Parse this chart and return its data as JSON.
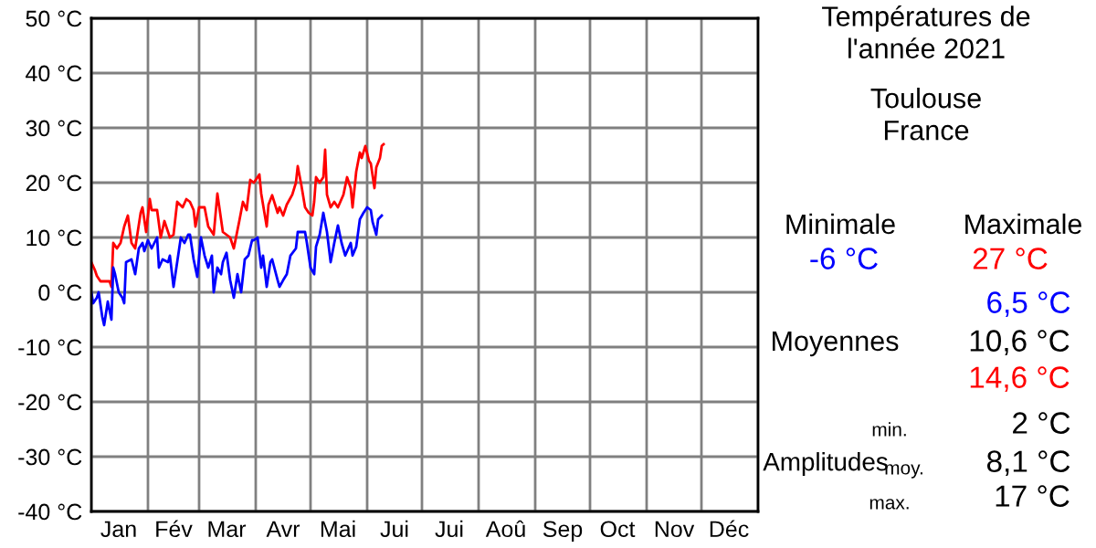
{
  "chart_data": {
    "type": "line",
    "title": "Températures de\nl'année 2021",
    "subtitle": "Toulouse\nFrance",
    "annotations": [
      "Minimale",
      "Maximale",
      "-6 °C",
      "27 °C",
      "6,5 °C",
      "Moyennes",
      "10,6 °C",
      "14,6 °C",
      "min.",
      "2 °C",
      "Amplitudes",
      "moy.",
      "8,1 °C",
      "max.",
      "17 °C"
    ],
    "xlim": [
      "2021-01-01",
      "2022-01-01"
    ],
    "xticks": [
      {
        "value": "2021-01-01",
        "label": null
      },
      {
        "value": "2021-01-16",
        "label": "Jan"
      },
      {
        "value": "2021-02-01",
        "label": null
      },
      {
        "value": "2021-02-15",
        "label": "Fév"
      },
      {
        "value": "2021-03-01",
        "label": null
      },
      {
        "value": "2021-03-16",
        "label": "Mar"
      },
      {
        "value": "2021-04-01",
        "label": null
      },
      {
        "value": "2021-04-16",
        "label": "Avr"
      },
      {
        "value": "2021-05-01",
        "label": null
      },
      {
        "value": "2021-05-16",
        "label": "Mai"
      },
      {
        "value": "2021-06-01",
        "label": null
      },
      {
        "value": "2021-06-16",
        "label": "Jui"
      },
      {
        "value": "2021-07-01",
        "label": null
      },
      {
        "value": "2021-07-16",
        "label": "Jui"
      },
      {
        "value": "2021-08-01",
        "label": null
      },
      {
        "value": "2021-08-16",
        "label": "Aoû"
      },
      {
        "value": "2021-09-01",
        "label": null
      },
      {
        "value": "2021-09-16",
        "label": "Sep"
      },
      {
        "value": "2021-10-01",
        "label": null
      },
      {
        "value": "2021-10-16",
        "label": "Oct"
      },
      {
        "value": "2021-11-01",
        "label": null
      },
      {
        "value": "2021-11-16",
        "label": "Nov"
      },
      {
        "value": "2021-12-01",
        "label": null
      },
      {
        "value": "2021-12-16",
        "label": "Déc"
      },
      {
        "value": "2022-01-01",
        "label": null
      }
    ],
    "ylim": [
      -40,
      50
    ],
    "yticks": [
      {
        "value": -40,
        "label": "-40 °C"
      },
      {
        "value": -30,
        "label": "-30 °C"
      },
      {
        "value": -20,
        "label": "-20 °C"
      },
      {
        "value": -10,
        "label": "-10 °C"
      },
      {
        "value": 0,
        "label": "0 °C"
      },
      {
        "value": 10,
        "label": "10 °C"
      },
      {
        "value": 20,
        "label": "20 °C"
      },
      {
        "value": 30,
        "label": "30 °C"
      },
      {
        "value": 40,
        "label": "40 °C"
      },
      {
        "value": 50,
        "label": "50 °C"
      }
    ],
    "grid": true,
    "legend": false,
    "marker": "none",
    "line_style": "solid",
    "series": [
      {
        "color": "#ff0000",
        "x": [
          "2021-01-01",
          "2021-01-03",
          "2021-01-04",
          "2021-01-06",
          "2021-01-11",
          "2021-01-12",
          "2021-01-13",
          "2021-01-15",
          "2021-01-17",
          "2021-01-19",
          "2021-01-21",
          "2021-01-23",
          "2021-01-25",
          "2021-01-28",
          "2021-01-29",
          "2021-01-31",
          "2021-02-02",
          "2021-02-03",
          "2021-02-06",
          "2021-02-08",
          "2021-02-10",
          "2021-02-13",
          "2021-02-15",
          "2021-02-17",
          "2021-02-20",
          "2021-02-22",
          "2021-02-24",
          "2021-02-26",
          "2021-02-27",
          "2021-03-01",
          "2021-03-04",
          "2021-03-06",
          "2021-03-09",
          "2021-03-11",
          "2021-03-14",
          "2021-03-16",
          "2021-03-18",
          "2021-03-20",
          "2021-03-23",
          "2021-03-25",
          "2021-03-27",
          "2021-03-29",
          "2021-03-31",
          "2021-04-03",
          "2021-04-04",
          "2021-04-07",
          "2021-04-08",
          "2021-04-10",
          "2021-04-13",
          "2021-04-14",
          "2021-04-16",
          "2021-04-18",
          "2021-04-21",
          "2021-04-23",
          "2021-04-24",
          "2021-04-26",
          "2021-04-28",
          "2021-04-30",
          "2021-05-02",
          "2021-05-03",
          "2021-05-04",
          "2021-05-06",
          "2021-05-08",
          "2021-05-09",
          "2021-05-10",
          "2021-05-12",
          "2021-05-14",
          "2021-05-16",
          "2021-05-19",
          "2021-05-21",
          "2021-05-23",
          "2021-05-24",
          "2021-05-26",
          "2021-05-28",
          "2021-05-29",
          "2021-05-31",
          "2021-06-02",
          "2021-06-03",
          "2021-06-05",
          "2021-06-06",
          "2021-06-08",
          "2021-06-09",
          "2021-06-10"
        ],
        "values": [
          5.5,
          4,
          3,
          2,
          2,
          1,
          9,
          8,
          9,
          12,
          14,
          9,
          8,
          14.5,
          15.5,
          11,
          17,
          15,
          15,
          10,
          13,
          10,
          10.5,
          16.5,
          15.5,
          17,
          16.5,
          15,
          12,
          15.5,
          15.5,
          12,
          10.5,
          18,
          11,
          10.5,
          10,
          8,
          13,
          16.5,
          15,
          20.5,
          20,
          21.5,
          18,
          12,
          16,
          17.7,
          14.5,
          15.5,
          14,
          16,
          17.8,
          20,
          23,
          19.5,
          15.5,
          14.5,
          14,
          16.5,
          21,
          20,
          21,
          26,
          17.8,
          15.5,
          16.5,
          15.5,
          17.8,
          21,
          19,
          15.5,
          22,
          25.5,
          24.5,
          26.7,
          24,
          23.5,
          19,
          22.8,
          24.5,
          26.7,
          27
        ]
      },
      {
        "color": "#0000ff",
        "x": [
          "2021-01-01",
          "2021-01-02",
          "2021-01-04",
          "2021-01-05",
          "2021-01-07",
          "2021-01-08",
          "2021-01-10",
          "2021-01-12",
          "2021-01-13",
          "2021-01-14",
          "2021-01-16",
          "2021-01-18",
          "2021-01-19",
          "2021-01-20",
          "2021-01-23",
          "2021-01-25",
          "2021-01-27",
          "2021-01-29",
          "2021-01-30",
          "2021-02-01",
          "2021-02-03",
          "2021-02-06",
          "2021-02-07",
          "2021-02-09",
          "2021-02-12",
          "2021-02-13",
          "2021-02-15",
          "2021-02-17",
          "2021-02-19",
          "2021-02-21",
          "2021-02-23",
          "2021-02-24",
          "2021-02-26",
          "2021-02-28",
          "2021-03-02",
          "2021-03-04",
          "2021-03-06",
          "2021-03-08",
          "2021-03-09",
          "2021-03-11",
          "2021-03-13",
          "2021-03-14",
          "2021-03-16",
          "2021-03-18",
          "2021-03-20",
          "2021-03-22",
          "2021-03-24",
          "2021-03-26",
          "2021-03-28",
          "2021-03-30",
          "2021-03-31",
          "2021-04-02",
          "2021-04-04",
          "2021-04-05",
          "2021-04-07",
          "2021-04-09",
          "2021-04-10",
          "2021-04-13",
          "2021-04-14",
          "2021-04-16",
          "2021-04-18",
          "2021-04-20",
          "2021-04-23",
          "2021-04-24",
          "2021-04-28",
          "2021-04-29",
          "2021-05-01",
          "2021-05-03",
          "2021-05-04",
          "2021-05-06",
          "2021-05-08",
          "2021-05-10",
          "2021-05-12",
          "2021-05-14",
          "2021-05-16",
          "2021-05-18",
          "2021-05-20",
          "2021-05-23",
          "2021-05-24",
          "2021-05-26",
          "2021-05-28",
          "2021-05-30",
          "2021-06-01",
          "2021-06-03",
          "2021-06-04",
          "2021-06-06",
          "2021-06-07",
          "2021-06-09"
        ],
        "values": [
          0,
          -2,
          -1,
          0,
          -4.5,
          -6,
          -1.7,
          -5,
          4.5,
          3.3,
          0,
          -1,
          -2,
          5.5,
          6,
          3.3,
          8,
          9,
          7.5,
          9.5,
          8,
          10,
          4.5,
          6,
          5.5,
          6.7,
          1,
          5.5,
          10,
          9,
          10.5,
          10.5,
          6,
          2.8,
          10,
          6.7,
          4.5,
          6.7,
          0,
          4.5,
          3.3,
          5.5,
          7.2,
          2.2,
          -1,
          3.3,
          0,
          6,
          6.7,
          9.5,
          9.5,
          10,
          4.5,
          6.7,
          1,
          5.5,
          6,
          2.2,
          1,
          2.2,
          3.3,
          6.7,
          8,
          11,
          11,
          9,
          4.5,
          3.3,
          8.3,
          10.5,
          14.5,
          11,
          5.5,
          9,
          12.2,
          9,
          6.7,
          9,
          6.7,
          8.3,
          13.3,
          14.5,
          15.5,
          15,
          12.8,
          10.5,
          13.3,
          14
        ]
      }
    ]
  }
}
